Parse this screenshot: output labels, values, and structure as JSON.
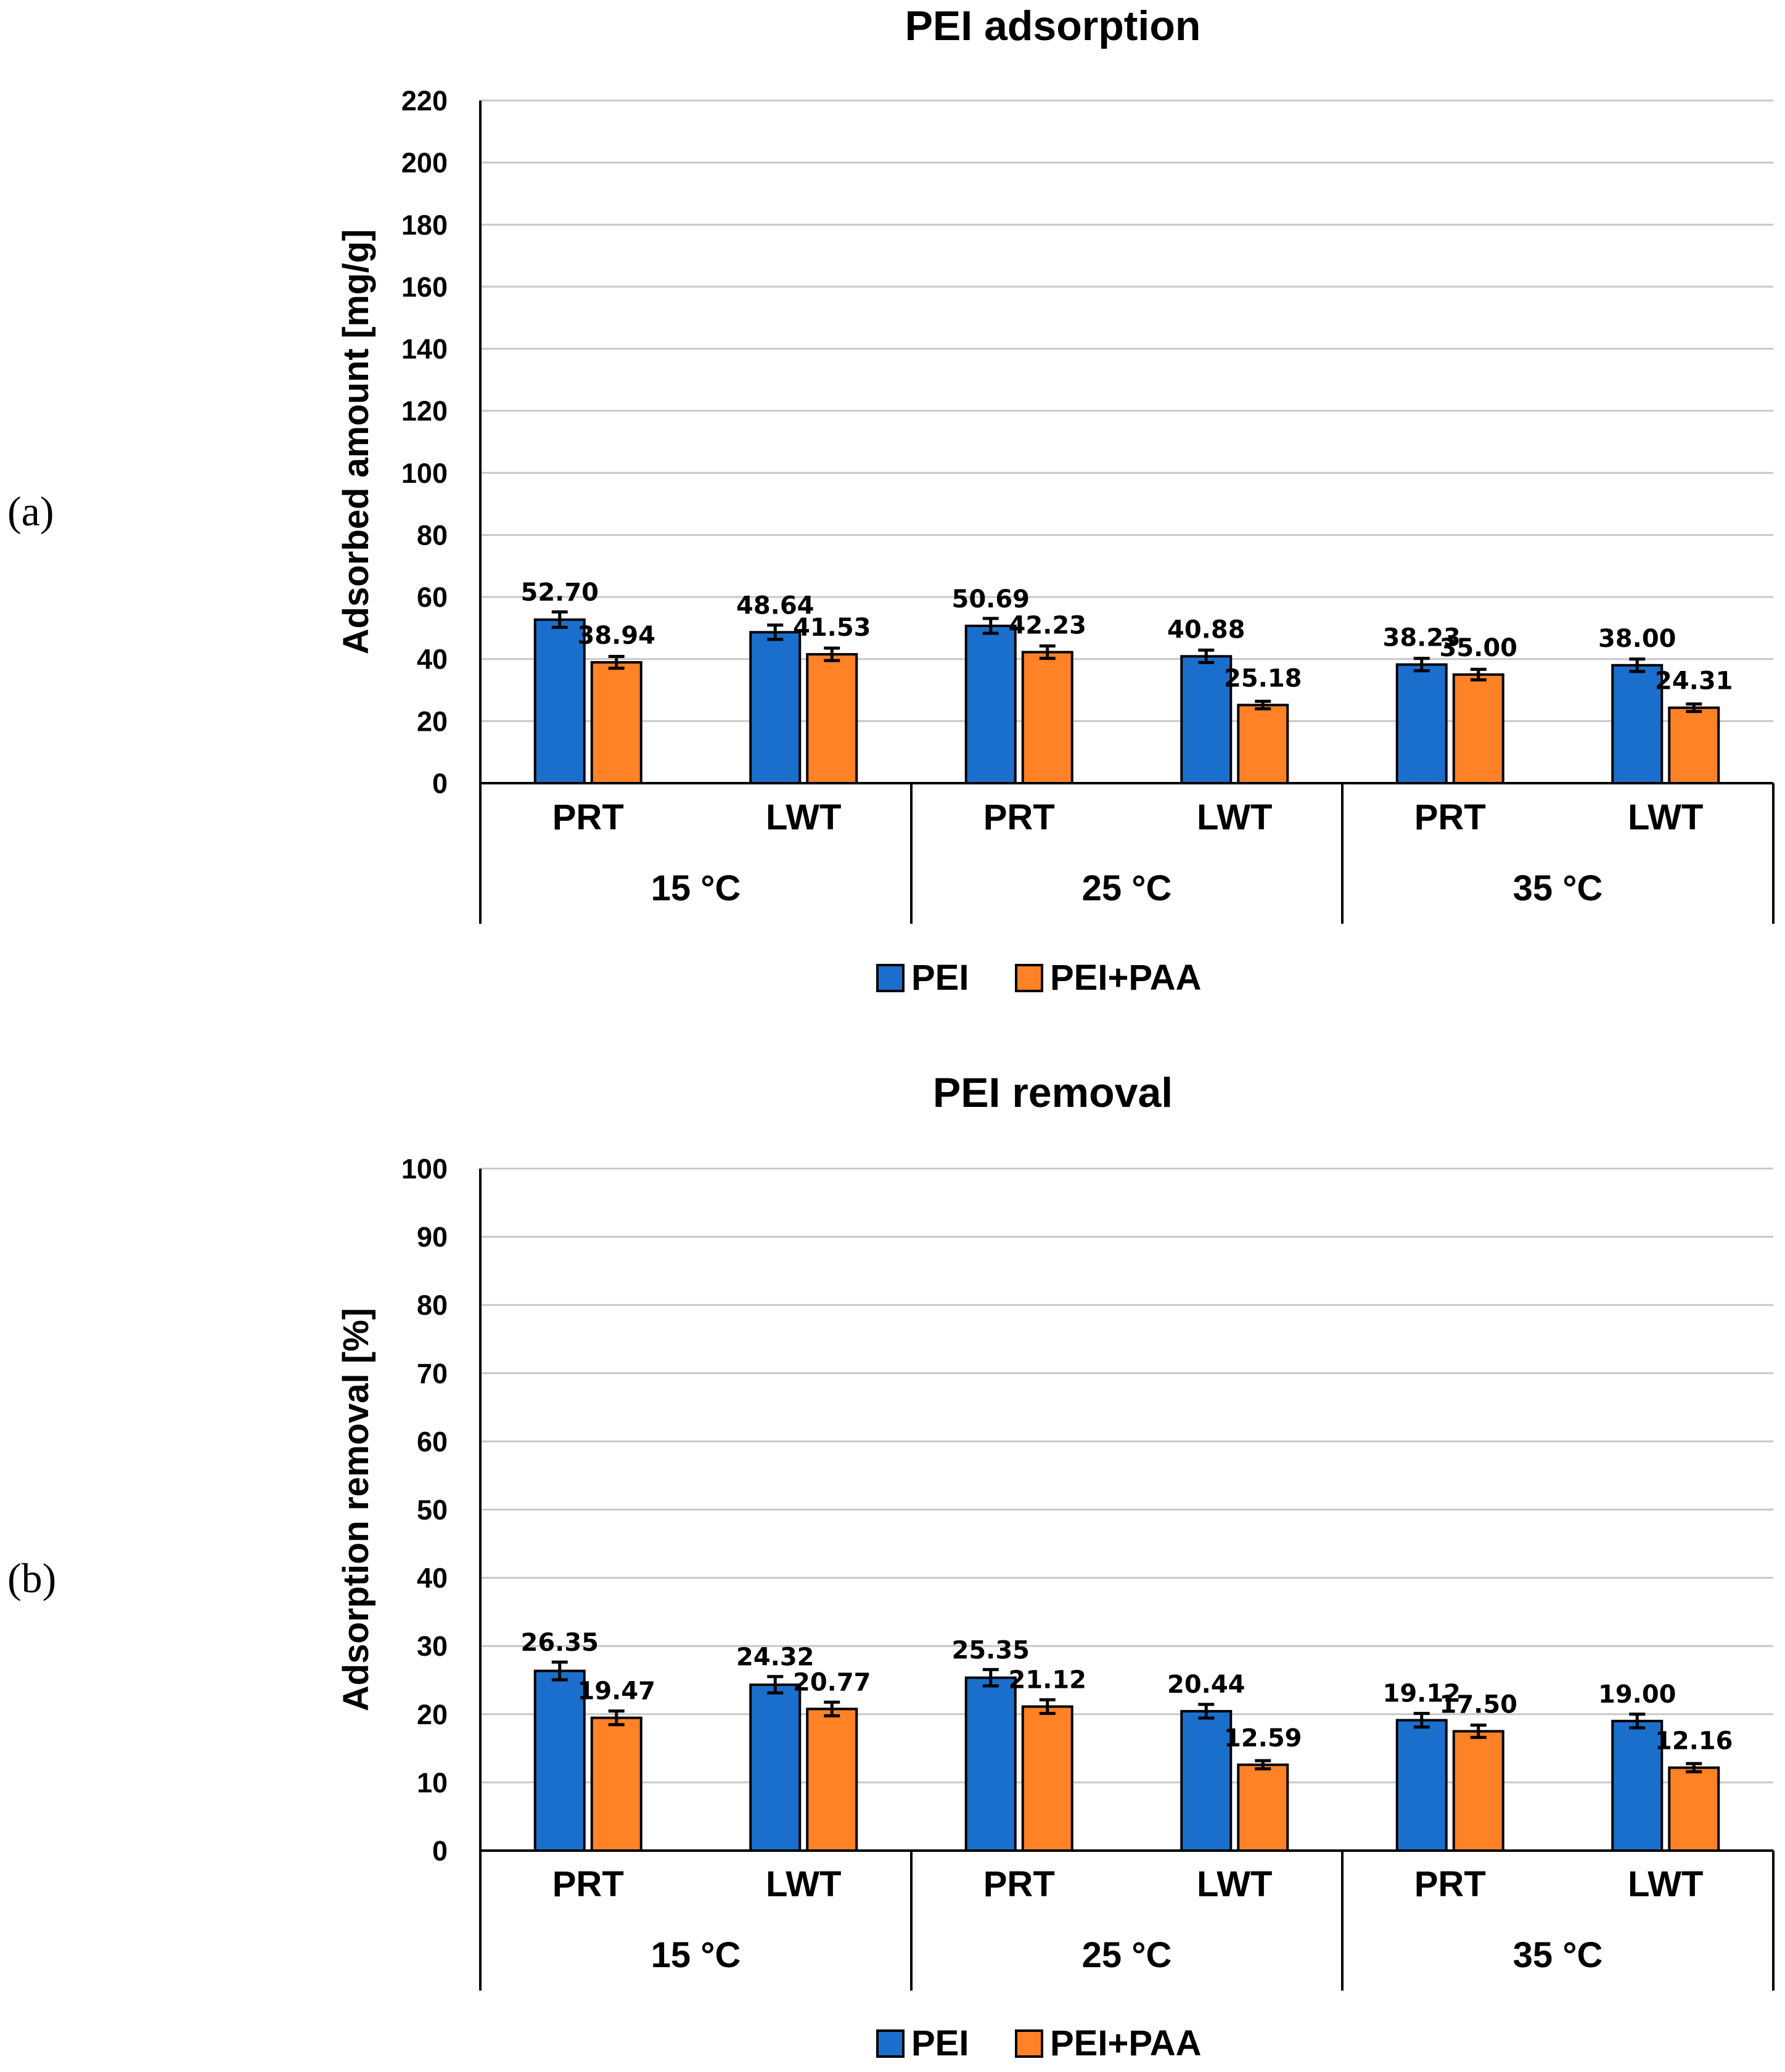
{
  "chart_data": [
    {
      "type": "bar",
      "panel_label": "(a)",
      "title": "PEI adsorption",
      "ylabel": "Adsorbed amount [mg/g]",
      "xlabel": "",
      "ylim": [
        0,
        220
      ],
      "ytick_step": 20,
      "yticks": [
        "0",
        "20",
        "40",
        "60",
        "80",
        "100",
        "120",
        "140",
        "160",
        "180",
        "200",
        "220"
      ],
      "grid": true,
      "categories": [
        "PRT",
        "LWT",
        "PRT",
        "LWT",
        "PRT",
        "LWT"
      ],
      "groups": [
        "15 °C",
        "25 °C",
        "35 °C"
      ],
      "series": [
        {
          "name": "PEI",
          "color": "#1b6fcc",
          "values": [
            52.7,
            48.64,
            50.69,
            40.88,
            38.23,
            38.0
          ],
          "labels": [
            "52.70",
            "48.64",
            "50.69",
            "40.88",
            "38.23",
            "38.00"
          ],
          "errors": [
            2.5,
            2.3,
            2.4,
            2.0,
            2.0,
            2.0
          ]
        },
        {
          "name": "PEI+PAA",
          "color": "#ff8226",
          "values": [
            38.94,
            41.53,
            42.23,
            25.18,
            35.0,
            24.31
          ],
          "labels": [
            "38.94",
            "41.53",
            "42.23",
            "25.18",
            "35.00",
            "24.31"
          ],
          "errors": [
            1.9,
            2.0,
            2.0,
            1.2,
            1.7,
            1.2
          ]
        }
      ],
      "legend": "bottom"
    },
    {
      "type": "bar",
      "panel_label": "(b)",
      "title": "PEI removal",
      "ylabel": "Adsorption removal [%]",
      "xlabel": "",
      "ylim": [
        0,
        100
      ],
      "ytick_step": 10,
      "yticks": [
        "0",
        "10",
        "20",
        "30",
        "40",
        "50",
        "60",
        "70",
        "80",
        "90",
        "100"
      ],
      "grid": true,
      "categories": [
        "PRT",
        "LWT",
        "PRT",
        "LWT",
        "PRT",
        "LWT"
      ],
      "groups": [
        "15 °C",
        "25 °C",
        "35 °C"
      ],
      "series": [
        {
          "name": "PEI",
          "color": "#1b6fcc",
          "values": [
            26.35,
            24.32,
            25.35,
            20.44,
            19.12,
            19.0
          ],
          "labels": [
            "26.35",
            "24.32",
            "25.35",
            "20.44",
            "19.12",
            "19.00"
          ],
          "errors": [
            1.3,
            1.2,
            1.2,
            1.0,
            1.0,
            1.0
          ]
        },
        {
          "name": "PEI+PAA",
          "color": "#ff8226",
          "values": [
            19.47,
            20.77,
            21.12,
            12.59,
            17.5,
            12.16
          ],
          "labels": [
            "19.47",
            "20.77",
            "21.12",
            "12.59",
            "17.50",
            "12.16"
          ],
          "errors": [
            1.0,
            1.0,
            1.0,
            0.6,
            0.9,
            0.6
          ]
        }
      ],
      "legend": "bottom"
    }
  ]
}
